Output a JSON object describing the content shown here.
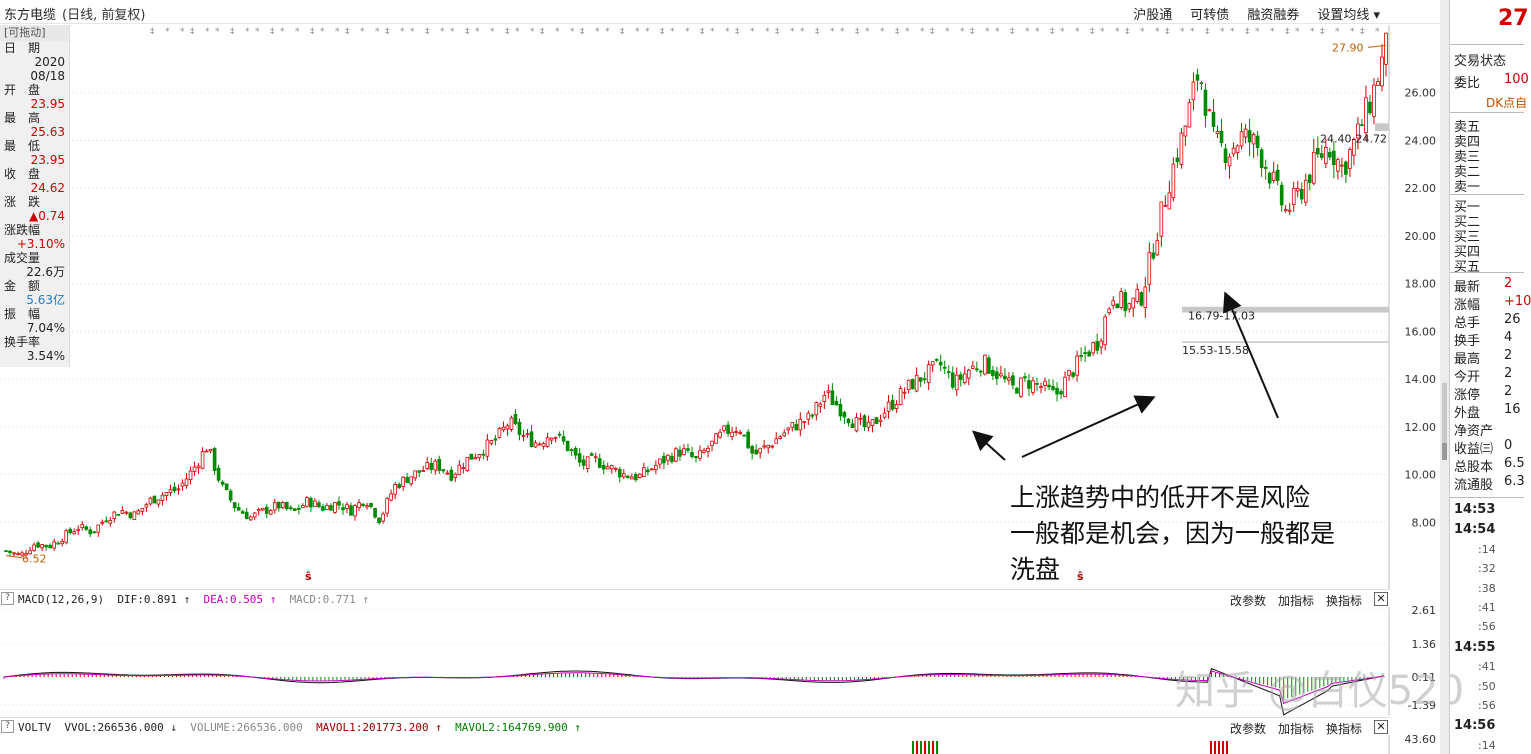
{
  "header": {
    "stock_name": "东方电缆",
    "period": "(日线, 前复权)",
    "menu": [
      "沪股通",
      "可转债",
      "融资融券",
      "设置均线 ▾"
    ]
  },
  "info_panel": {
    "drag_label": "[可拖动]",
    "rows": [
      {
        "label": "日　期",
        "value": "2020\n08/18",
        "color": "black"
      },
      {
        "label": "开　盘",
        "value": "23.95",
        "color": "red"
      },
      {
        "label": "最　高",
        "value": "25.63",
        "color": "red"
      },
      {
        "label": "最　低",
        "value": "23.95",
        "color": "red"
      },
      {
        "label": "收　盘",
        "value": "24.62",
        "color": "red"
      },
      {
        "label": "涨　跌",
        "value": "▲0.74",
        "color": "red"
      },
      {
        "label": "涨跌幅",
        "value": "+3.10%",
        "color": "red"
      },
      {
        "label": "成交量",
        "value": "22.6万",
        "color": "black"
      },
      {
        "label": "金　额",
        "value": "5.63亿",
        "color": "blue"
      },
      {
        "label": "振　幅",
        "value": "7.04%",
        "color": "black"
      },
      {
        "label": "换手率",
        "value": "3.54%",
        "color": "black"
      }
    ]
  },
  "chart_data": {
    "type": "candlestick",
    "y_ticks": [
      "26.00",
      "24.00",
      "22.00",
      "20.00",
      "18.00",
      "16.00",
      "14.00",
      "12.00",
      "10.00",
      "8.00"
    ],
    "ylim": [
      6.0,
      28.0
    ],
    "high_label": "27.90",
    "low_label": "6.52",
    "gap_labels": [
      "24.40-24.72",
      "16.79-17.03",
      "15.53-15.58"
    ],
    "close_path": [
      6.8,
      6.6,
      7.1,
      7.0,
      7.4,
      7.8,
      7.6,
      8.2,
      8.5,
      8.3,
      8.9,
      9.2,
      9.4,
      10.2,
      11.2,
      9.5,
      8.6,
      8.2,
      8.5,
      8.7,
      8.4,
      8.9,
      8.6,
      8.8,
      8.5,
      9.0,
      8.1,
      9.5,
      9.9,
      10.2,
      10.4,
      10.0,
      10.6,
      11.0,
      11.4,
      12.2,
      11.6,
      11.3,
      11.8,
      11.2,
      10.4,
      10.6,
      10.3,
      10.0,
      9.9,
      10.3,
      10.7,
      11.0,
      10.6,
      11.2,
      11.8,
      12.0,
      10.8,
      11.2,
      11.7,
      12.1,
      12.4,
      13.4,
      12.8,
      12.2,
      11.9,
      12.6,
      13.2,
      13.8,
      14.2,
      14.6,
      13.8,
      14.4,
      14.7,
      14.2,
      13.6,
      13.9,
      13.7,
      13.3,
      14.2,
      15.0,
      15.6,
      17.6,
      17.0,
      17.5,
      20.0,
      22.5,
      24.5,
      27.0,
      24.0,
      23.5,
      24.2,
      23.8,
      22.5,
      21.0,
      21.8,
      23.0,
      23.8,
      22.8,
      24.2,
      25.8,
      27.9
    ],
    "annotation": "上涨趋势中的低开不是风险\n一般都是机会，因为一般都是\n洗盘"
  },
  "macd": {
    "label": "MACD(12,26,9)",
    "dif": "DIF:0.891",
    "dea": "DEA:0.505",
    "macd": "MACD:0.771",
    "buttons": [
      "改参数",
      "加指标",
      "换指标"
    ],
    "y_ticks": [
      "2.61",
      "1.36",
      "0.11",
      "-1.39"
    ]
  },
  "vol": {
    "label": "VOLTV",
    "vvol": "VVOL:266536.000",
    "volume": "VOLUME:266536.000",
    "mavol1": "MAVOL1:201773.200",
    "mavol2": "MAVOL2:164769.900",
    "buttons": [
      "改参数",
      "加指标",
      "换指标"
    ],
    "y_tick": "43.60"
  },
  "right_panel": {
    "price": "27",
    "trade_status": "交易状态",
    "weibi_label": "委比",
    "weibi_value": "100",
    "dk_label": "DK点自",
    "sells": [
      "卖五",
      "卖四",
      "卖三",
      "卖二",
      "卖一"
    ],
    "buys": [
      "买一",
      "买二",
      "买三",
      "买四",
      "买五"
    ],
    "stats": [
      {
        "label": "最新",
        "value": "2"
      },
      {
        "label": "涨幅",
        "value": "+10"
      },
      {
        "label": "总手",
        "value": "26"
      },
      {
        "label": "换手",
        "value": "4"
      },
      {
        "label": "最高",
        "value": "2"
      },
      {
        "label": "今开",
        "value": "2"
      },
      {
        "label": "涨停",
        "value": "2"
      },
      {
        "label": "外盘",
        "value": "16"
      },
      {
        "label": "净资产",
        "value": ""
      },
      {
        "label": "收益㈢",
        "value": "0"
      },
      {
        "label": "总股本",
        "value": "6.5"
      },
      {
        "label": "流通股",
        "value": "6.3"
      }
    ],
    "times": [
      "14:53",
      "14:54",
      "14:55",
      "14:56"
    ],
    "tick_secs": [
      ":14",
      ":32",
      ":38",
      ":41",
      ":56",
      ":41",
      ":50",
      ":56",
      ":14"
    ]
  },
  "watermark": "知乎 @白仪520"
}
